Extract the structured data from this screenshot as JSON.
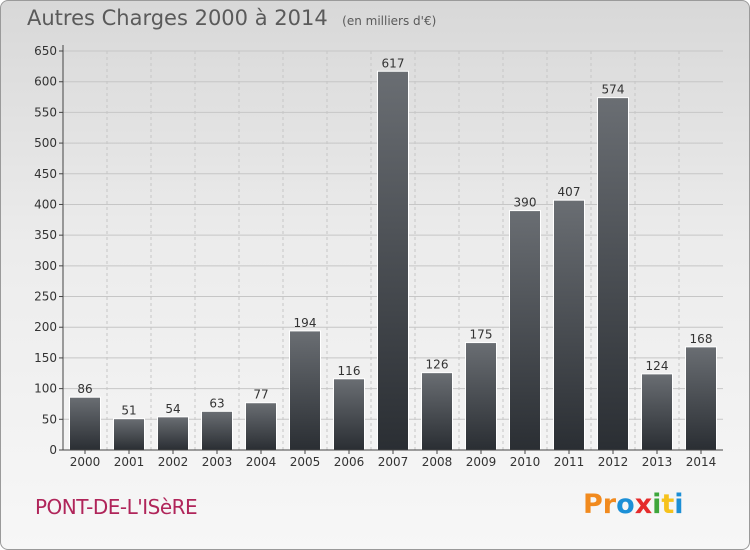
{
  "header": {
    "title": "Autres Charges 2000 à 2014",
    "subtitle": "(en milliers d'€)"
  },
  "footer": {
    "place": "PONT-DE-L'ISèRE",
    "logo": "Proxiti",
    "logo_colors": [
      "#f18a1e",
      "#f18a1e",
      "#1c8fd6",
      "#e52b2b",
      "#3ea63b",
      "#f6c21c",
      "#1c8fd6"
    ]
  },
  "colors": {
    "bar_top": "#6a6e73",
    "bar_bottom": "#2a2e33",
    "grid": "#c6c6c6",
    "axis": "#444444",
    "text": "#333333"
  },
  "chart_data": {
    "type": "bar",
    "title": "Autres Charges 2000 à 2014",
    "subtitle": "(en milliers d'€)",
    "categories": [
      "2000",
      "2001",
      "2002",
      "2003",
      "2004",
      "2005",
      "2006",
      "2007",
      "2008",
      "2009",
      "2010",
      "2011",
      "2012",
      "2013",
      "2014"
    ],
    "values": [
      86,
      51,
      54,
      63,
      77,
      194,
      116,
      617,
      126,
      175,
      390,
      407,
      574,
      124,
      168
    ],
    "ylim": [
      0,
      650
    ],
    "yticks": [
      0,
      50,
      100,
      150,
      200,
      250,
      300,
      350,
      400,
      450,
      500,
      550,
      600,
      650
    ],
    "grid": true,
    "data_labels": true
  }
}
